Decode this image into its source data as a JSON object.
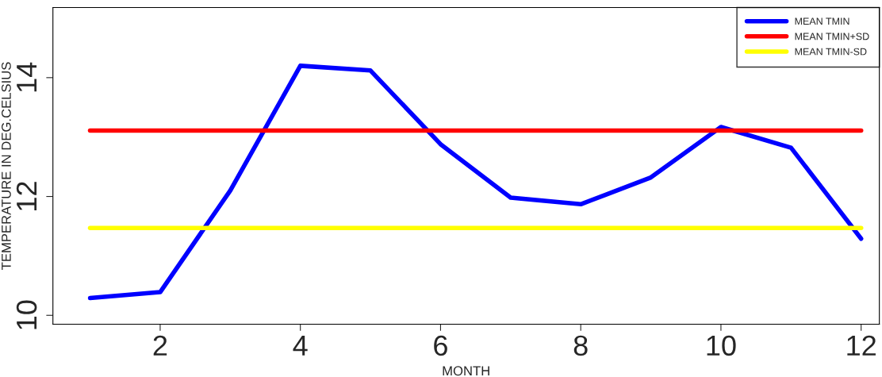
{
  "chart_data": {
    "type": "line",
    "xlabel": "MONTH",
    "ylabel": "TEMPERATURE IN DEG.CELSIUS",
    "x": [
      1,
      2,
      3,
      4,
      5,
      6,
      7,
      8,
      9,
      10,
      11,
      12
    ],
    "series": [
      {
        "name": "MEAN TMIN",
        "color": "#0000ff",
        "values": [
          10.29,
          10.39,
          12.1,
          14.2,
          14.12,
          12.88,
          11.98,
          11.87,
          12.32,
          13.17,
          12.82,
          11.29
        ]
      },
      {
        "name": "MEAN TMIN+SD",
        "color": "#ff0000",
        "values": [
          13.11,
          13.11,
          13.11,
          13.11,
          13.11,
          13.11,
          13.11,
          13.11,
          13.11,
          13.11,
          13.11,
          13.11
        ]
      },
      {
        "name": "MEAN TMIN-SD",
        "color": "#ffff00",
        "values": [
          11.47,
          11.47,
          11.47,
          11.47,
          11.47,
          11.47,
          11.47,
          11.47,
          11.47,
          11.47,
          11.47,
          11.47
        ]
      }
    ],
    "xlim": [
      0.47,
      12.26
    ],
    "ylim": [
      9.85,
      15.18
    ],
    "xticks": [
      2,
      4,
      6,
      8,
      10,
      12
    ],
    "yticks": [
      10,
      12,
      14
    ],
    "grid": false,
    "legend": "top right",
    "line_style": "solid",
    "marker": "none"
  }
}
